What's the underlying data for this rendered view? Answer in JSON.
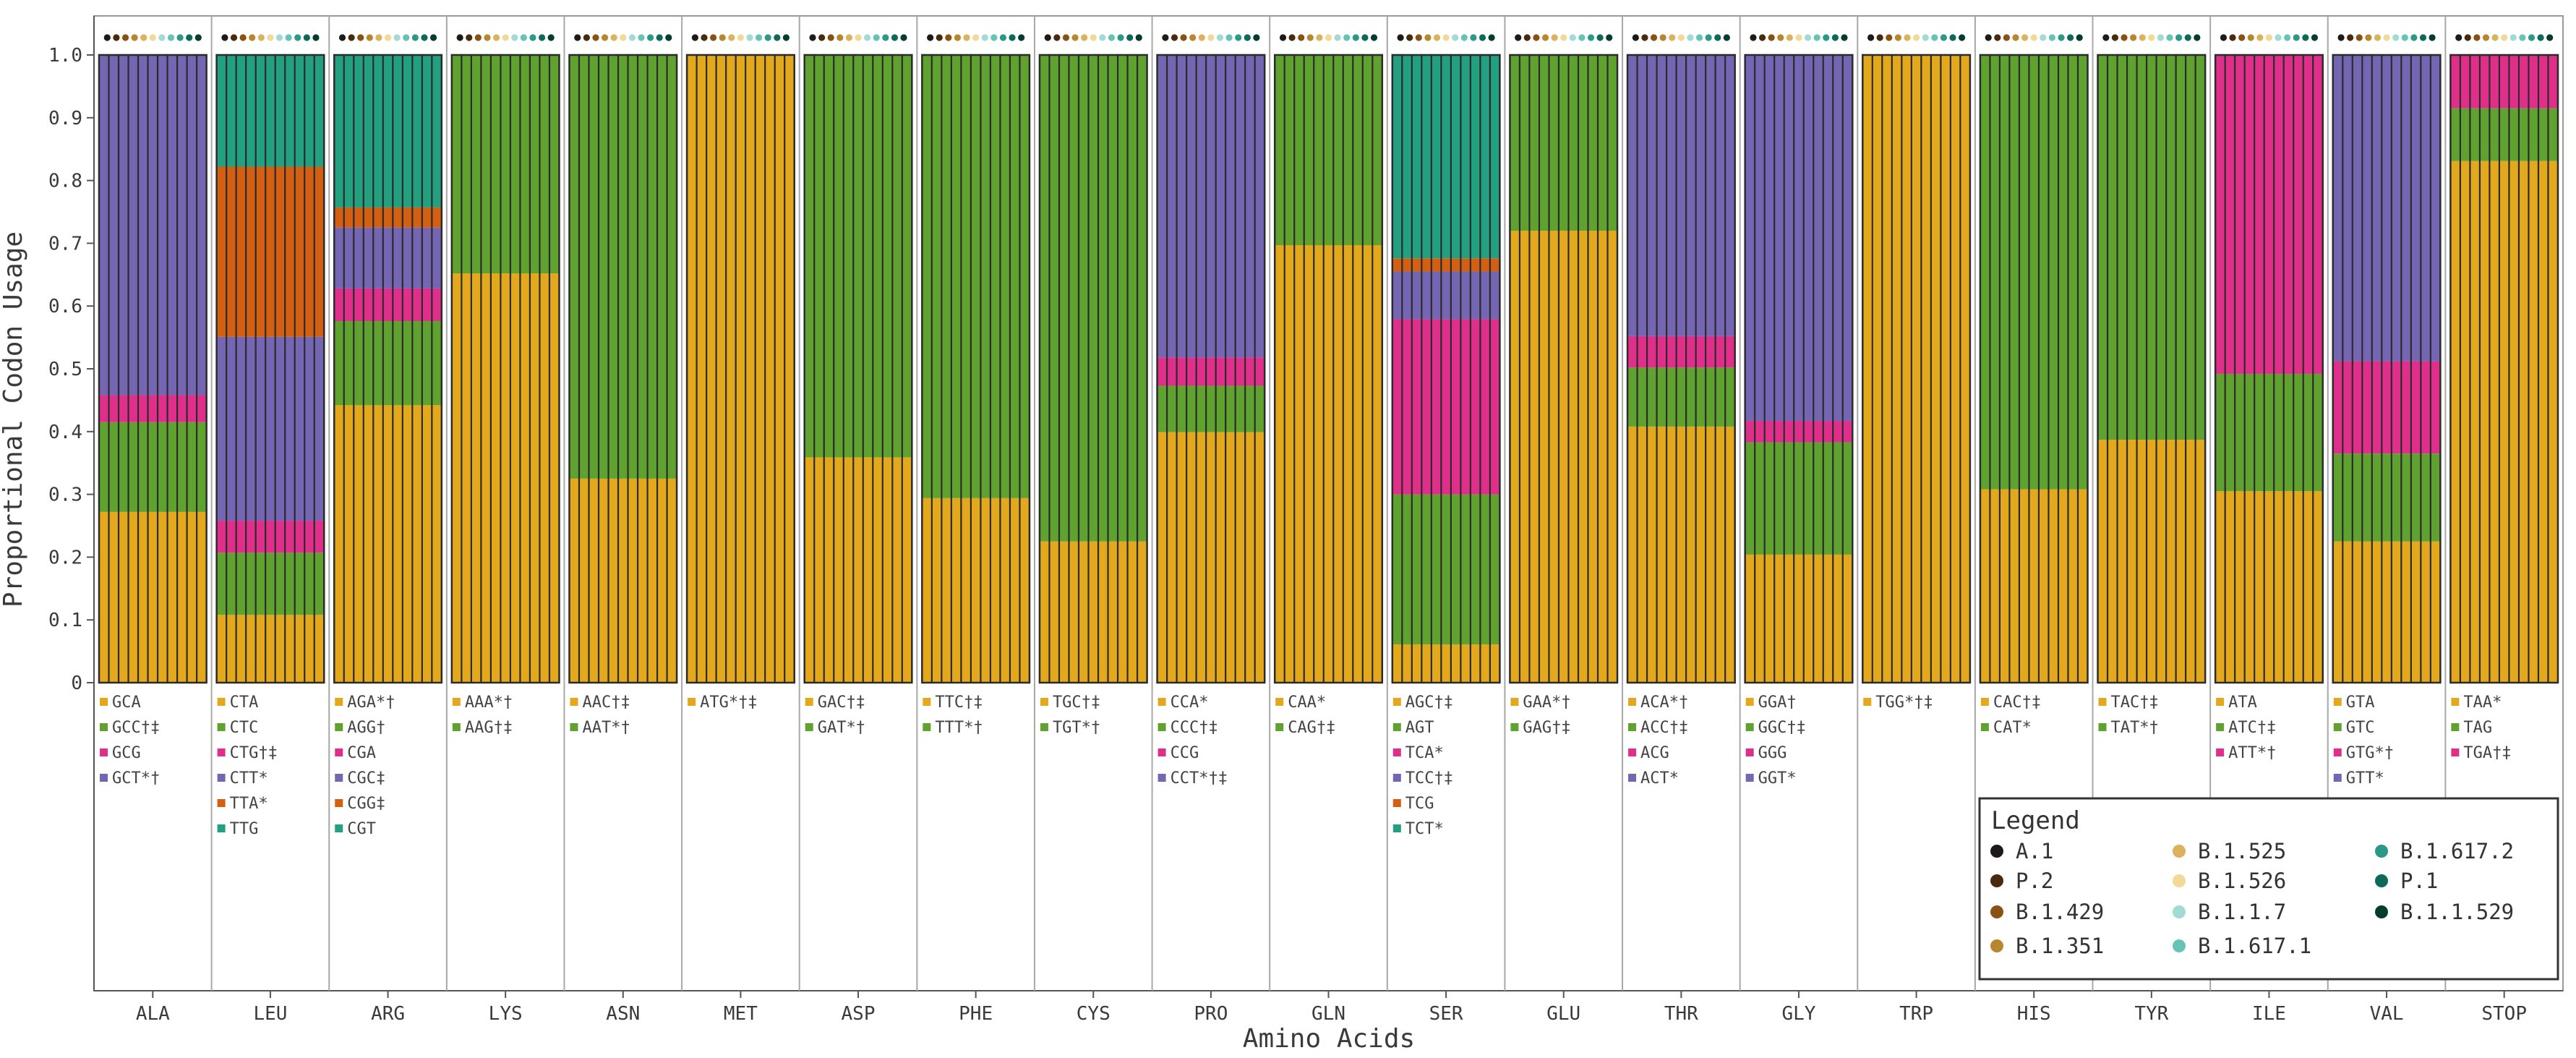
{
  "chart_data": {
    "type": "bar",
    "stacked": true,
    "ylabel": "Proportional Codon Usage",
    "xlabel": "Amino Acids",
    "ylim": [
      0,
      1.0
    ],
    "yticks": [
      "0",
      "0.1",
      "0.2",
      "0.3",
      "0.4",
      "0.5",
      "0.6",
      "0.7",
      "0.8",
      "0.9",
      "1.0"
    ],
    "palette": {
      "c1": "#e3a81b",
      "c2": "#5fa22f",
      "c3": "#e02f8a",
      "c4": "#7466b2",
      "c5": "#d35f12",
      "c6": "#23a07f"
    },
    "variants": [
      {
        "name": "A.1",
        "color": "#1f1a17"
      },
      {
        "name": "P.2",
        "color": "#4a2a0c"
      },
      {
        "name": "B.1.429",
        "color": "#8b5113"
      },
      {
        "name": "B.1.351",
        "color": "#b8862e"
      },
      {
        "name": "B.1.525",
        "color": "#dcb25c"
      },
      {
        "name": "B.1.526",
        "color": "#f2d997"
      },
      {
        "name": "B.1.1.7",
        "color": "#a2dad6"
      },
      {
        "name": "B.1.617.1",
        "color": "#66c4b5"
      },
      {
        "name": "B.1.617.2",
        "color": "#2a9a88"
      },
      {
        "name": "P.1",
        "color": "#0d6a58"
      },
      {
        "name": "B.1.1.529",
        "color": "#043c2e"
      }
    ],
    "legend": {
      "title": "Legend",
      "position": "bottom-right"
    },
    "groups": [
      {
        "aa": "ALA",
        "codons": [
          {
            "label": "GCA",
            "color": "c1",
            "value": 0.272
          },
          {
            "label": "GCC†‡",
            "color": "c2",
            "value": 0.143
          },
          {
            "label": "GCG",
            "color": "c3",
            "value": 0.043
          },
          {
            "label": "GCT*†",
            "color": "c4",
            "value": 0.542
          }
        ]
      },
      {
        "aa": "LEU",
        "codons": [
          {
            "label": "CTA",
            "color": "c1",
            "value": 0.108
          },
          {
            "label": "CTC",
            "color": "c2",
            "value": 0.099
          },
          {
            "label": "CTG†‡",
            "color": "c3",
            "value": 0.051
          },
          {
            "label": "CTT*",
            "color": "c4",
            "value": 0.293
          },
          {
            "label": "TTA*",
            "color": "c5",
            "value": 0.271
          },
          {
            "label": "TTG",
            "color": "c6",
            "value": 0.178
          }
        ]
      },
      {
        "aa": "ARG",
        "codons": [
          {
            "label": "AGA*†",
            "color": "c1",
            "value": 0.442
          },
          {
            "label": "AGG†",
            "color": "c2",
            "value": 0.134
          },
          {
            "label": "CGA",
            "color": "c3",
            "value": 0.052
          },
          {
            "label": "CGC‡",
            "color": "c4",
            "value": 0.097
          },
          {
            "label": "CGG‡",
            "color": "c5",
            "value": 0.032
          },
          {
            "label": "CGT",
            "color": "c6",
            "value": 0.243
          }
        ]
      },
      {
        "aa": "LYS",
        "codons": [
          {
            "label": "AAA*†",
            "color": "c1",
            "value": 0.652
          },
          {
            "label": "AAG†‡",
            "color": "c2",
            "value": 0.348
          }
        ]
      },
      {
        "aa": "ASN",
        "codons": [
          {
            "label": "AAC†‡",
            "color": "c1",
            "value": 0.325
          },
          {
            "label": "AAT*†",
            "color": "c2",
            "value": 0.675
          }
        ]
      },
      {
        "aa": "MET",
        "codons": [
          {
            "label": "ATG*†‡",
            "color": "c1",
            "value": 1.0
          }
        ]
      },
      {
        "aa": "ASP",
        "codons": [
          {
            "label": "GAC†‡",
            "color": "c1",
            "value": 0.359
          },
          {
            "label": "GAT*†",
            "color": "c2",
            "value": 0.641
          }
        ]
      },
      {
        "aa": "PHE",
        "codons": [
          {
            "label": "TTC†‡",
            "color": "c1",
            "value": 0.294
          },
          {
            "label": "TTT*†",
            "color": "c2",
            "value": 0.706
          }
        ]
      },
      {
        "aa": "CYS",
        "codons": [
          {
            "label": "TGC†‡",
            "color": "c1",
            "value": 0.225
          },
          {
            "label": "TGT*†",
            "color": "c2",
            "value": 0.775
          }
        ]
      },
      {
        "aa": "PRO",
        "codons": [
          {
            "label": "CCA*",
            "color": "c1",
            "value": 0.399
          },
          {
            "label": "CCC†‡",
            "color": "c2",
            "value": 0.074
          },
          {
            "label": "CCG",
            "color": "c3",
            "value": 0.045
          },
          {
            "label": "CCT*†‡",
            "color": "c4",
            "value": 0.482
          }
        ]
      },
      {
        "aa": "GLN",
        "codons": [
          {
            "label": "CAA*",
            "color": "c1",
            "value": 0.697
          },
          {
            "label": "CAG†‡",
            "color": "c2",
            "value": 0.303
          }
        ]
      },
      {
        "aa": "SER",
        "codons": [
          {
            "label": "AGC†‡",
            "color": "c1",
            "value": 0.061
          },
          {
            "label": "AGT",
            "color": "c2",
            "value": 0.239
          },
          {
            "label": "TCA*",
            "color": "c3",
            "value": 0.279
          },
          {
            "label": "TCC†‡",
            "color": "c4",
            "value": 0.076
          },
          {
            "label": "TCG",
            "color": "c5",
            "value": 0.021
          },
          {
            "label": "TCT*",
            "color": "c6",
            "value": 0.324
          }
        ]
      },
      {
        "aa": "GLU",
        "codons": [
          {
            "label": "GAA*†",
            "color": "c1",
            "value": 0.72
          },
          {
            "label": "GAG†‡",
            "color": "c2",
            "value": 0.28
          }
        ]
      },
      {
        "aa": "THR",
        "codons": [
          {
            "label": "ACA*†",
            "color": "c1",
            "value": 0.408
          },
          {
            "label": "ACC†‡",
            "color": "c2",
            "value": 0.094
          },
          {
            "label": "ACG",
            "color": "c3",
            "value": 0.05
          },
          {
            "label": "ACT*",
            "color": "c4",
            "value": 0.448
          }
        ]
      },
      {
        "aa": "GLY",
        "codons": [
          {
            "label": "GGA†",
            "color": "c1",
            "value": 0.204
          },
          {
            "label": "GGC†‡",
            "color": "c2",
            "value": 0.179
          },
          {
            "label": "GGG",
            "color": "c3",
            "value": 0.034
          },
          {
            "label": "GGT*",
            "color": "c4",
            "value": 0.583
          }
        ]
      },
      {
        "aa": "TRP",
        "codons": [
          {
            "label": "TGG*†‡",
            "color": "c1",
            "value": 1.0
          }
        ]
      },
      {
        "aa": "HIS",
        "codons": [
          {
            "label": "CAC†‡",
            "color": "c1",
            "value": 0.308
          },
          {
            "label": "CAT*",
            "color": "c2",
            "value": 0.692
          }
        ]
      },
      {
        "aa": "TYR",
        "codons": [
          {
            "label": "TAC†‡",
            "color": "c1",
            "value": 0.387
          },
          {
            "label": "TAT*†",
            "color": "c2",
            "value": 0.613
          }
        ]
      },
      {
        "aa": "ILE",
        "codons": [
          {
            "label": "ATA",
            "color": "c1",
            "value": 0.305
          },
          {
            "label": "ATC†‡",
            "color": "c2",
            "value": 0.187
          },
          {
            "label": "ATT*†",
            "color": "c3",
            "value": 0.508
          }
        ]
      },
      {
        "aa": "VAL",
        "codons": [
          {
            "label": "GTA",
            "color": "c1",
            "value": 0.225
          },
          {
            "label": "GTC",
            "color": "c2",
            "value": 0.14
          },
          {
            "label": "GTG*†",
            "color": "c3",
            "value": 0.147
          },
          {
            "label": "GTT*",
            "color": "c4",
            "value": 0.488
          }
        ]
      },
      {
        "aa": "STOP",
        "codons": [
          {
            "label": "TAA*",
            "color": "c1",
            "value": 0.831
          },
          {
            "label": "TAG",
            "color": "c2",
            "value": 0.084
          },
          {
            "label": "TGA†‡",
            "color": "c3",
            "value": 0.085
          }
        ]
      }
    ]
  }
}
